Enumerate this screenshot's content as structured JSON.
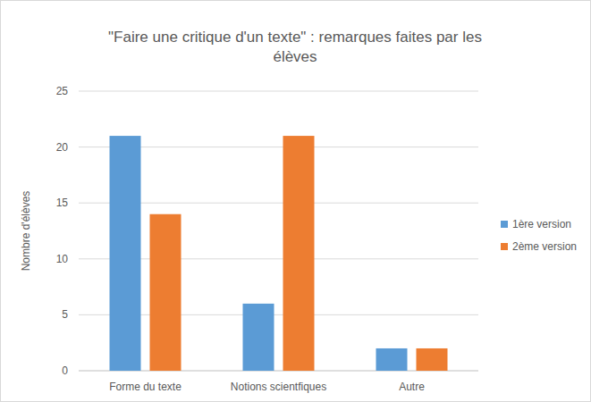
{
  "chart_data": {
    "type": "bar",
    "title": "\"Faire une critique d'un texte\" : remarques faites par les élèves",
    "y_label": "Nombre d'élèves",
    "categories": [
      "Forme du texte",
      "Notions scientfiques",
      "Autre"
    ],
    "series": [
      {
        "name": "1ère version",
        "color": "#5b9bd5",
        "values": [
          21,
          6,
          2
        ]
      },
      {
        "name": "2ème version",
        "color": "#ed7d31",
        "values": [
          14,
          21,
          2
        ]
      }
    ],
    "ylim": [
      0,
      25
    ],
    "yticks": [
      0,
      5,
      10,
      15,
      20,
      25
    ],
    "grid": true,
    "legend": "right"
  }
}
